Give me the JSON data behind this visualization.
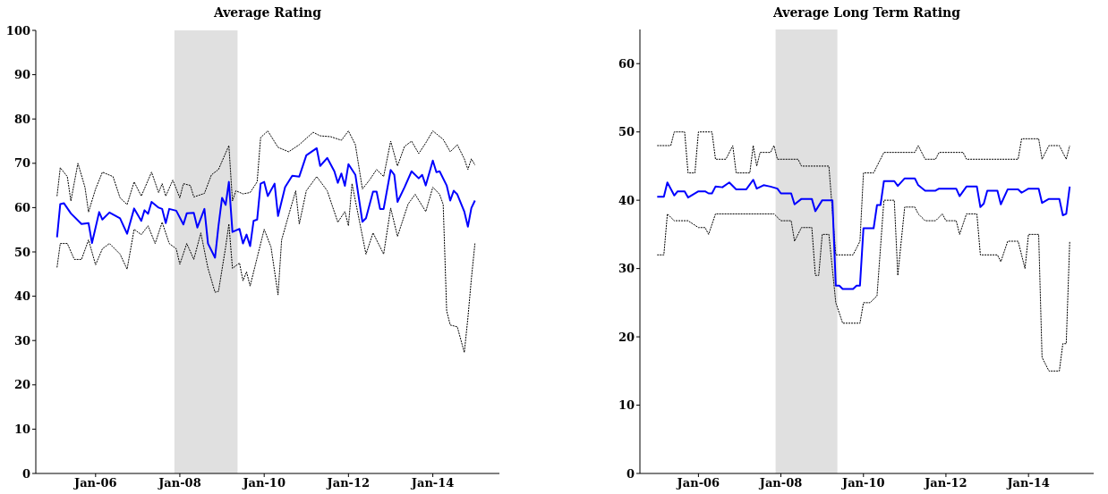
{
  "chart_data": [
    {
      "type": "line",
      "title": "Average Rating",
      "xlim": [
        "2004-08",
        "2015-08"
      ],
      "xticks": [
        {
          "value": "2006-01",
          "label": "Jan-06"
        },
        {
          "value": "2008-01",
          "label": "Jan-08"
        },
        {
          "value": "2010-01",
          "label": "Jan-10"
        },
        {
          "value": "2012-01",
          "label": "Jan-12"
        },
        {
          "value": "2014-01",
          "label": "Jan-14"
        }
      ],
      "ylim": [
        0,
        100
      ],
      "yticks": [
        0,
        10,
        20,
        30,
        40,
        50,
        60,
        70,
        80,
        90,
        100
      ],
      "marker": "none",
      "bands": [
        {
          "axis": "x",
          "from": "2007-11-15",
          "to": "2009-05-15",
          "color": "#e0e0e0"
        }
      ],
      "series": [
        {
          "color": "#000000",
          "line_style": "dotted",
          "x": [
            "2005-02",
            "2005-03",
            "2005-05",
            "2005-06",
            "2005-08",
            "2005-10",
            "2005-11",
            "2006-01",
            "2006-03",
            "2006-06",
            "2006-08",
            "2006-10",
            "2006-12",
            "2007-02",
            "2007-05",
            "2007-07",
            "2007-08",
            "2007-09",
            "2007-11",
            "2008-01",
            "2008-02",
            "2008-04",
            "2008-05",
            "2008-08",
            "2008-10",
            "2008-12",
            "2009-03",
            "2009-04",
            "2009-05",
            "2009-07",
            "2009-09",
            "2009-11",
            "2009-12",
            "2010-02",
            "2010-05",
            "2010-08",
            "2010-11",
            "2011-03",
            "2011-05",
            "2011-08",
            "2011-11",
            "2012-01",
            "2012-03",
            "2012-05",
            "2012-07",
            "2012-09",
            "2012-11",
            "2013-01",
            "2013-03",
            "2013-05",
            "2013-07",
            "2013-09",
            "2013-11",
            "2014-01",
            "2014-04",
            "2014-06",
            "2014-08",
            "2014-10",
            "2014-11",
            "2014-12",
            "2015-01"
          ],
          "values": [
            62.6,
            69,
            67,
            61.5,
            70,
            64.6,
            59,
            64.2,
            68,
            67,
            62.2,
            60.7,
            65.8,
            62.6,
            68,
            63.4,
            65.4,
            62.6,
            66.2,
            62.2,
            65.4,
            65,
            62.4,
            63.2,
            67.4,
            68.6,
            74,
            61.5,
            63.8,
            63.1,
            63.4,
            65.8,
            75.8,
            77.3,
            73.6,
            72.6,
            74.2,
            77,
            76.2,
            76,
            75.2,
            77.3,
            74.2,
            64.2,
            66.2,
            68.6,
            67,
            75,
            69.4,
            73.8,
            75,
            72.2,
            74.6,
            77.3,
            75.4,
            72.6,
            74.2,
            71,
            68.6,
            71,
            69.6
          ]
        },
        {
          "color": "#000000",
          "line_style": "dotted",
          "x": [
            "2005-02",
            "2005-03",
            "2005-05",
            "2005-07",
            "2005-09",
            "2005-11",
            "2006-01",
            "2006-03",
            "2006-05",
            "2006-08",
            "2006-10",
            "2006-12",
            "2007-02",
            "2007-04",
            "2007-06",
            "2007-08",
            "2007-10",
            "2007-12",
            "2008-01",
            "2008-03",
            "2008-05",
            "2008-07",
            "2008-09",
            "2008-11",
            "2008-12",
            "2009-02",
            "2009-03",
            "2009-04",
            "2009-06",
            "2009-07",
            "2009-08",
            "2009-09",
            "2009-11",
            "2010-01",
            "2010-03",
            "2010-05",
            "2010-06",
            "2010-08",
            "2010-10",
            "2010-11",
            "2011-01",
            "2011-04",
            "2011-07",
            "2011-10",
            "2011-12",
            "2012-01",
            "2012-02",
            "2012-04",
            "2012-06",
            "2012-08",
            "2012-11",
            "2013-01",
            "2013-03",
            "2013-06",
            "2013-08",
            "2013-11",
            "2014-01",
            "2014-03",
            "2014-04",
            "2014-05",
            "2014-06",
            "2014-08",
            "2014-10",
            "2014-11",
            "2014-12",
            "2015-01"
          ],
          "values": [
            46.5,
            51.9,
            51.9,
            48.3,
            48.3,
            52.7,
            47.1,
            50.7,
            51.9,
            49.5,
            46.1,
            55.1,
            53.9,
            55.9,
            51.9,
            56.7,
            51.9,
            50.7,
            47.2,
            51.9,
            48.3,
            54.3,
            46.3,
            40.9,
            41.1,
            51.1,
            56.3,
            46.3,
            47.5,
            43.5,
            45.5,
            42.3,
            48.7,
            55.1,
            51.1,
            40.3,
            52.7,
            58.3,
            63.8,
            56.3,
            63.8,
            67,
            63.8,
            56.7,
            59.1,
            55.9,
            65.4,
            57.5,
            49.5,
            54.3,
            49.5,
            59.9,
            53.5,
            60.8,
            63,
            59.1,
            64.6,
            63,
            60.7,
            36.7,
            33.5,
            33.1,
            27.3,
            35.1,
            43.9,
            51.9
          ]
        },
        {
          "color": "#0000ff",
          "line_style": "solid",
          "x": [
            "2005-02",
            "2005-03",
            "2005-04",
            "2005-06",
            "2005-09",
            "2005-11",
            "2005-12",
            "2006-02",
            "2006-03",
            "2006-05",
            "2006-08",
            "2006-10",
            "2006-12",
            "2007-02",
            "2007-03",
            "2007-04",
            "2007-05",
            "2007-07",
            "2007-08",
            "2007-09",
            "2007-10",
            "2007-12",
            "2008-02",
            "2008-03",
            "2008-05",
            "2008-06",
            "2008-08",
            "2008-09",
            "2008-11",
            "2008-12",
            "2009-01",
            "2009-02",
            "2009-03",
            "2009-04",
            "2009-06",
            "2009-07",
            "2009-08",
            "2009-09",
            "2009-10",
            "2009-11",
            "2009-12",
            "2010-01",
            "2010-02",
            "2010-04",
            "2010-05",
            "2010-07",
            "2010-09",
            "2010-11",
            "2011-01",
            "2011-04",
            "2011-05",
            "2011-07",
            "2011-09",
            "2011-10",
            "2011-11",
            "2011-12",
            "2012-01",
            "2012-03",
            "2012-05",
            "2012-06",
            "2012-08",
            "2012-09",
            "2012-10",
            "2012-11",
            "2013-01",
            "2013-02",
            "2013-03",
            "2013-05",
            "2013-07",
            "2013-09",
            "2013-10",
            "2013-11",
            "2014-01",
            "2014-02",
            "2014-03",
            "2014-05",
            "2014-06",
            "2014-07",
            "2014-08",
            "2014-10",
            "2014-11",
            "2014-12",
            "2015-01"
          ],
          "values": [
            53.3,
            60.8,
            61,
            58.7,
            56.3,
            56.5,
            52,
            59,
            57.3,
            58.9,
            57.6,
            54.1,
            59.8,
            57,
            59.4,
            58.6,
            61.3,
            60,
            59.7,
            56.5,
            59.7,
            59.3,
            56.2,
            58.7,
            58.8,
            55.5,
            59.7,
            51.9,
            48.7,
            55.9,
            62.2,
            60.6,
            65.8,
            54.5,
            55.2,
            51.9,
            53.9,
            51.3,
            57,
            57.3,
            65.4,
            65.8,
            62.6,
            65.4,
            58.1,
            64.6,
            67.2,
            67,
            71.8,
            73.4,
            69.4,
            71.2,
            68.2,
            65.6,
            67.7,
            64.9,
            69.8,
            67.4,
            56.8,
            57.6,
            63.6,
            63.6,
            59.7,
            59.7,
            68.5,
            67.4,
            61.3,
            64.6,
            68.2,
            66.6,
            67.4,
            65,
            70.6,
            68,
            68.2,
            65,
            61.6,
            63.8,
            63,
            59.1,
            55.7,
            59.9,
            61.6
          ]
        }
      ]
    },
    {
      "type": "line",
      "title": "Average Long Term Rating",
      "xlim": [
        "2004-08",
        "2015-08"
      ],
      "xticks": [
        {
          "value": "2006-01",
          "label": "Jan-06"
        },
        {
          "value": "2008-01",
          "label": "Jan-08"
        },
        {
          "value": "2010-01",
          "label": "Jan-10"
        },
        {
          "value": "2012-01",
          "label": "Jan-12"
        },
        {
          "value": "2014-01",
          "label": "Jan-14"
        }
      ],
      "ylim": [
        0,
        65
      ],
      "yticks": [
        0,
        10,
        20,
        30,
        40,
        50,
        60
      ],
      "marker": "none",
      "bands": [
        {
          "axis": "x",
          "from": "2007-11-15",
          "to": "2009-05-15",
          "color": "#e0e0e0"
        }
      ],
      "series": [
        {
          "color": "#000000",
          "line_style": "dotted",
          "x": [
            "2005-01",
            "2005-05",
            "2005-06",
            "2005-09",
            "2005-10",
            "2005-12",
            "2006-01",
            "2006-05",
            "2006-06",
            "2006-09",
            "2006-11",
            "2006-12",
            "2007-04",
            "2007-05",
            "2007-06",
            "2007-07",
            "2007-10",
            "2007-11",
            "2007-12",
            "2008-06",
            "2008-07",
            "2009-03",
            "2009-05",
            "2009-10",
            "2009-11",
            "2009-12",
            "2010-01",
            "2010-04",
            "2010-05",
            "2010-07",
            "2011-04",
            "2011-05",
            "2011-07",
            "2011-10",
            "2011-11",
            "2012-06",
            "2012-07",
            "2013-10",
            "2013-11",
            "2014-04",
            "2014-05",
            "2014-07",
            "2014-10",
            "2014-12",
            "2015-01"
          ],
          "values": [
            48,
            48,
            50,
            50,
            44,
            44,
            50,
            50,
            46,
            46,
            48,
            44,
            44,
            48,
            45,
            47,
            47,
            48,
            46,
            46,
            45,
            45,
            32,
            32,
            33,
            34,
            44,
            44,
            45,
            47,
            47,
            48,
            46,
            46,
            47,
            47,
            46,
            46,
            49,
            49,
            46,
            48,
            48,
            46,
            48
          ]
        },
        {
          "color": "#000000",
          "line_style": "dotted",
          "x": [
            "2005-01",
            "2005-03",
            "2005-04",
            "2005-06",
            "2005-10",
            "2006-01",
            "2006-03",
            "2006-04",
            "2006-06",
            "2007-11",
            "2008-01",
            "2008-04",
            "2008-05",
            "2008-07",
            "2008-10",
            "2008-11",
            "2008-12",
            "2009-01",
            "2009-03",
            "2009-05",
            "2009-07",
            "2009-12",
            "2010-01",
            "2010-03",
            "2010-05",
            "2010-07",
            "2010-10",
            "2010-11",
            "2011-01",
            "2011-04",
            "2011-05",
            "2011-07",
            "2011-10",
            "2011-12",
            "2012-01",
            "2012-04",
            "2012-05",
            "2012-07",
            "2012-10",
            "2012-11",
            "2013-04",
            "2013-05",
            "2013-07",
            "2013-10",
            "2013-12",
            "2014-01",
            "2014-04",
            "2014-05",
            "2014-07",
            "2014-10",
            "2014-11",
            "2014-12",
            "2015-01"
          ],
          "values": [
            32,
            32,
            38,
            37,
            37,
            36,
            36,
            35,
            38,
            38,
            37,
            37,
            34,
            36,
            36,
            29,
            29,
            35,
            35,
            25,
            22,
            22,
            25,
            25,
            26,
            40,
            40,
            29,
            39,
            39,
            38,
            37,
            37,
            38,
            37,
            37,
            35,
            38,
            38,
            32,
            32,
            31,
            34,
            34,
            30,
            35,
            35,
            17,
            15,
            15,
            19,
            19,
            34
          ]
        },
        {
          "color": "#0000ff",
          "line_style": "solid",
          "x": [
            "2005-01",
            "2005-03",
            "2005-04",
            "2005-06",
            "2005-07",
            "2005-09",
            "2005-10",
            "2006-01",
            "2006-03",
            "2006-04",
            "2006-05",
            "2006-06",
            "2006-08",
            "2006-10",
            "2006-12",
            "2007-03",
            "2007-05",
            "2007-06",
            "2007-08",
            "2007-10",
            "2007-12",
            "2008-01",
            "2008-04",
            "2008-05",
            "2008-07",
            "2008-10",
            "2008-11",
            "2009-01",
            "2009-04",
            "2009-05",
            "2009-06",
            "2009-07",
            "2009-10",
            "2009-11",
            "2009-12",
            "2010-01",
            "2010-04",
            "2010-05",
            "2010-06",
            "2010-07",
            "2010-10",
            "2010-11",
            "2011-01",
            "2011-04",
            "2011-05",
            "2011-07",
            "2011-10",
            "2011-11",
            "2012-04",
            "2012-05",
            "2012-07",
            "2012-10",
            "2012-11",
            "2012-12",
            "2013-01",
            "2013-04",
            "2013-05",
            "2013-07",
            "2013-10",
            "2013-11",
            "2014-01",
            "2014-04",
            "2014-05",
            "2014-07",
            "2014-10",
            "2014-11",
            "2014-12",
            "2015-01"
          ],
          "values": [
            40.5,
            40.5,
            42.6,
            40.7,
            41.3,
            41.3,
            40.4,
            41.3,
            41.3,
            41,
            41,
            42,
            41.9,
            42.6,
            41.6,
            41.6,
            43,
            41.7,
            42.2,
            42,
            41.7,
            41,
            41,
            39.4,
            40.2,
            40.2,
            38.4,
            40,
            40,
            27.5,
            27.5,
            27,
            27,
            27.5,
            27.5,
            35.9,
            35.9,
            39.3,
            39.3,
            42.8,
            42.8,
            42.1,
            43.2,
            43.2,
            42.2,
            41.4,
            41.4,
            41.7,
            41.7,
            40.6,
            42,
            42,
            39,
            39.5,
            41.4,
            41.4,
            39.4,
            41.6,
            41.6,
            41.1,
            41.7,
            41.7,
            39.6,
            40.2,
            40.2,
            37.8,
            38,
            42
          ]
        }
      ]
    }
  ]
}
